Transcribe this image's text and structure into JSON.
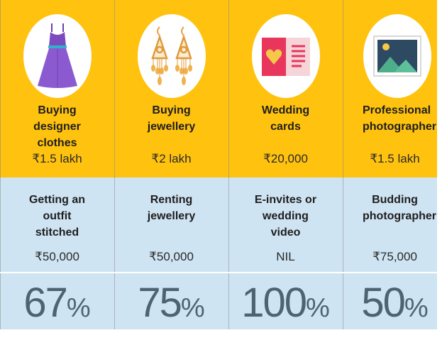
{
  "columns": [
    {
      "icon": "dress-icon",
      "buy_label": "Buying designer clothes",
      "buy_price": "₹1.5 lakh",
      "alt_label": "Getting an outfit stitched",
      "alt_price": "₹50,000",
      "saving": "67",
      "saving_unit": "%"
    },
    {
      "icon": "earrings-icon",
      "buy_label": "Buying jewellery",
      "buy_price": "₹2 lakh",
      "alt_label": "Renting jewellery",
      "alt_price": "₹50,000",
      "saving": "75",
      "saving_unit": "%"
    },
    {
      "icon": "wedding-card-icon",
      "buy_label": "Wedding cards",
      "buy_price": "₹20,000",
      "alt_label": "E-invites or wedding video",
      "alt_price": "NIL",
      "saving": "100",
      "saving_unit": "%"
    },
    {
      "icon": "photo-icon",
      "buy_label": "Professional photographer",
      "buy_price": "₹1.5 lakh",
      "alt_label": "Budding photographer",
      "alt_price": "₹75,000",
      "saving": "50",
      "saving_unit": "%"
    }
  ],
  "colors": {
    "top_band": "#FFC20E",
    "bottom_band": "#CFE4F2",
    "percent_text": "#4C6373"
  }
}
